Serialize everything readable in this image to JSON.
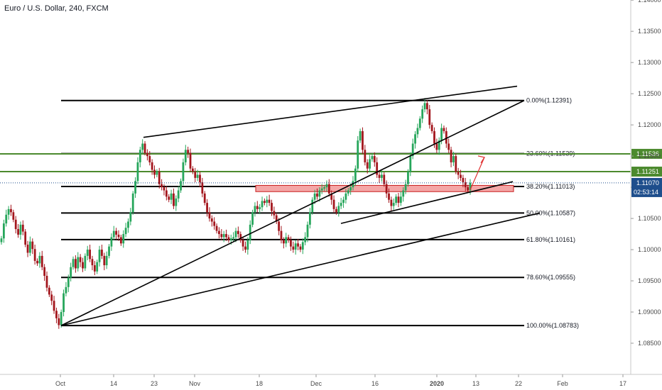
{
  "chart_data": {
    "type": "candlestick",
    "title": "Euro / U.S. Dollar, 240, FXCM",
    "ylim": [
      1.08,
      1.144
    ],
    "y_ticks": [
      "1.14000",
      "1.13500",
      "1.13000",
      "1.12500",
      "1.12000",
      "1.11500",
      "1.11000",
      "1.10500",
      "1.10000",
      "1.09500",
      "1.09000",
      "1.08500"
    ],
    "x_ticks": [
      "Oct",
      "14",
      "23",
      "Nov",
      "18",
      "Dec",
      "16",
      "2020",
      "13",
      "22",
      "Feb",
      "17"
    ],
    "fib_levels": [
      {
        "label": "0.00%(1.12391)",
        "value": 1.12391
      },
      {
        "label": "23.60%(1.11539)",
        "value": 1.11539
      },
      {
        "label": "38.20%(1.11013)",
        "value": 1.11013
      },
      {
        "label": "50.00%(1.10587)",
        "value": 1.10587
      },
      {
        "label": "61.80%(1.10161)",
        "value": 1.10161
      },
      {
        "label": "78.60%(1.09555)",
        "value": 1.09555
      },
      {
        "label": "100.00%(1.08783)",
        "value": 1.08783
      }
    ],
    "horizontal_lines": [
      {
        "value": 1.11536,
        "label": "1.11536",
        "color": "#4c8a2e"
      },
      {
        "value": 1.11251,
        "label": "1.11251",
        "color": "#4c8a2e"
      }
    ],
    "last_price": {
      "value": 1.1107,
      "label": "1.11070",
      "countdown": "02:53:14",
      "color": "#1e4e8c"
    },
    "support_zone": {
      "from": 1.1093,
      "to": 1.1103,
      "color": "#f4a6a6"
    },
    "up_color": "#26a65b",
    "down_color": "#a3161d",
    "candles_close": [
      1.1018,
      1.1042,
      1.1056,
      1.1065,
      1.106,
      1.1048,
      1.1033,
      1.1024,
      1.104,
      1.1029,
      1.1008,
      1.0995,
      1.1013,
      1.1001,
      1.0982,
      1.0978,
      1.099,
      1.0972,
      1.0958,
      1.0939,
      1.0928,
      1.0918,
      1.0902,
      1.089,
      1.0879,
      1.09,
      1.093,
      1.094,
      1.0955,
      1.0972,
      1.0985,
      1.097,
      1.0988,
      1.098,
      1.097,
      1.099,
      1.1,
      1.0985,
      1.0975,
      1.0965,
      1.098,
      1.1,
      1.099,
      1.0975,
      1.099,
      1.1005,
      1.102,
      1.103,
      1.1024,
      1.102,
      1.101,
      1.1025,
      1.1035,
      1.1045,
      1.106,
      1.109,
      1.111,
      1.114,
      1.116,
      1.117,
      1.1155,
      1.115,
      1.114,
      1.1128,
      1.112,
      1.1125,
      1.1105,
      1.11,
      1.1095,
      1.1085,
      1.108,
      1.109,
      1.107,
      1.1082,
      1.1095,
      1.111,
      1.114,
      1.116,
      1.1155,
      1.113,
      1.1125,
      1.1115,
      1.112,
      1.1108,
      1.109,
      1.1075,
      1.106,
      1.105,
      1.1045,
      1.1038,
      1.103,
      1.1025,
      1.102,
      1.1025,
      1.102,
      1.1015,
      1.1018,
      1.102,
      1.103,
      1.1025,
      1.1015,
      1.1005,
      1.1,
      1.1015,
      1.104,
      1.106,
      1.107,
      1.1065,
      1.1068,
      1.1078,
      1.1075,
      1.108,
      1.1075,
      1.1062,
      1.1055,
      1.1045,
      1.103,
      1.1015,
      1.101,
      1.102,
      1.1015,
      1.1005,
      1.1,
      1.101,
      1.1005,
      1.1,
      1.1012,
      1.102,
      1.104,
      1.106,
      1.108,
      1.109,
      1.1085,
      1.1095,
      1.1098,
      1.11,
      1.1105,
      1.109,
      1.108,
      1.1065,
      1.106,
      1.107,
      1.1075,
      1.108,
      1.109,
      1.1095,
      1.11,
      1.111,
      1.113,
      1.1175,
      1.119,
      1.116,
      1.114,
      1.113,
      1.1145,
      1.115,
      1.114,
      1.112,
      1.1115,
      1.112,
      1.1105,
      1.109,
      1.108,
      1.107,
      1.1075,
      1.1085,
      1.1075,
      1.1085,
      1.1095,
      1.1105,
      1.1125,
      1.115,
      1.117,
      1.1185,
      1.1195,
      1.121,
      1.1225,
      1.1235,
      1.1225,
      1.12,
      1.119,
      1.117,
      1.116,
      1.1175,
      1.1195,
      1.119,
      1.117,
      1.116,
      1.114,
      1.115,
      1.1125,
      1.112,
      1.1115,
      1.1108,
      1.11,
      1.1095,
      1.1107
    ]
  }
}
